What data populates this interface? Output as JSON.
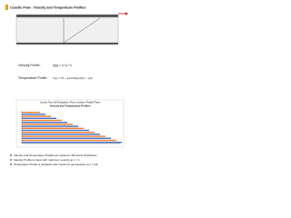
{
  "header": {
    "title": "Couette Flow : Velocity and Temperature Profiles"
  },
  "equations": [
    {
      "label": "Velocity Profile :",
      "formula": "u(y) = U y / h"
    },
    {
      "label": "Temperature Profile :",
      "formula": "T(y) = T0 + (μU²/2k)(y/h)(1 − y/h)"
    }
  ],
  "figure": {
    "title": "Couette Flow with Dissipation | Flow in between Parallel Plates",
    "subtitle": "Velocity and Temperature Profiles"
  },
  "bullets": [
    "Velocity and Temperature Profiles are plotted in MS Excel Worksheet",
    "Velocity Profile is linear with maximum velocity at y = h",
    "Temperature Profile is parabolic with maximum temperature at y = h/2"
  ]
}
